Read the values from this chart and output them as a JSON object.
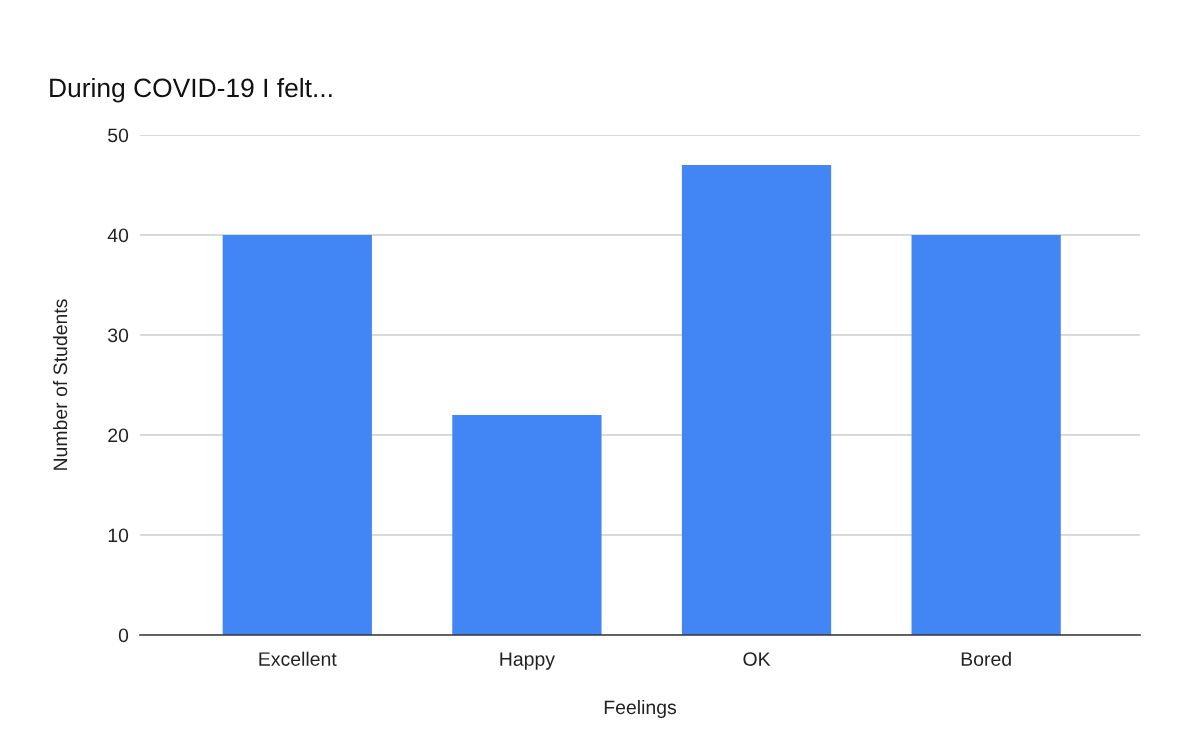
{
  "chart_data": {
    "type": "bar",
    "title": "During COVID-19 I felt...",
    "xlabel": "Feelings",
    "ylabel": "Number of Students",
    "categories": [
      "Excellent",
      "Happy",
      "OK",
      "Bored"
    ],
    "values": [
      40,
      22,
      47,
      40
    ],
    "color": "#4285f4",
    "ylim": [
      0,
      50
    ],
    "yticks": [
      0,
      10,
      20,
      30,
      40,
      50
    ],
    "grid": "y"
  }
}
